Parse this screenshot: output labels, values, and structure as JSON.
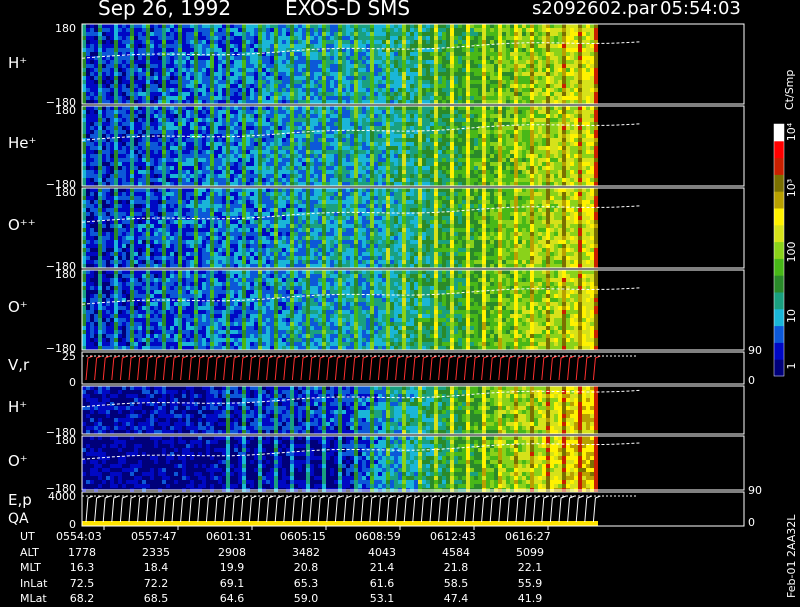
{
  "header": {
    "date": "Sep 26, 1992",
    "instrument": "EXOS-D SMS",
    "filename": "s2092602.par",
    "time": "05:54:03"
  },
  "colorbar": {
    "unit_label": "Ct/Smp",
    "tick_labels": [
      "1",
      "10",
      "100",
      "10³",
      "10⁴"
    ]
  },
  "footer": {
    "row_labels": [
      "UT",
      "ALT",
      "MLT",
      "InLat",
      "MLat"
    ],
    "UT": [
      "0554:03",
      "0557:47",
      "0601:31",
      "0605:15",
      "0608:59",
      "0612:43",
      "0616:27"
    ],
    "ALT": [
      "1778",
      "2335",
      "2908",
      "3482",
      "4043",
      "4584",
      "5099"
    ],
    "MLT": [
      "16.3",
      "18.4",
      "19.9",
      "20.8",
      "21.4",
      "21.8",
      "22.1"
    ],
    "InLat": [
      "72.5",
      "72.2",
      "69.1",
      "65.3",
      "61.6",
      "58.5",
      "55.9"
    ],
    "MLat": [
      "68.2",
      "68.5",
      "64.6",
      "59.0",
      "53.1",
      "47.4",
      "41.9"
    ],
    "side_text": "Feb-01 2AA32L"
  },
  "chart_data": {
    "type": "heatmap",
    "panels": [
      {
        "label": "H⁺",
        "ytop": "180",
        "ybottom": "−180"
      },
      {
        "label": "He⁺",
        "ytop": "180",
        "ybottom": "−180"
      },
      {
        "label": "O⁺⁺",
        "ytop": "180",
        "ybottom": "−180"
      },
      {
        "label": "O⁺",
        "ytop": "180",
        "ybottom": "−180"
      },
      {
        "label": "V,r",
        "ytop": "25",
        "ybottom": "0",
        "right_top": "90",
        "right_bottom": "0"
      },
      {
        "label": "H⁺",
        "ytop": "",
        "ybottom": "−180"
      },
      {
        "label": "O⁺",
        "ytop": "180",
        "ybottom": "−180"
      },
      {
        "label": "E,p",
        "label2": "QA",
        "ytop": "4000",
        "ybottom": "0",
        "right_top": "90",
        "right_bottom": "0"
      }
    ],
    "colors": [
      "#00007a",
      "#0008c4",
      "#0c58d8",
      "#1ab6d8",
      "#1aa080",
      "#2a8a2a",
      "#48b818",
      "#8ad21a",
      "#d6e21a",
      "#fff200",
      "#b8a000",
      "#7a7000",
      "#c82000",
      "#ff0000",
      "#ffffff"
    ]
  }
}
